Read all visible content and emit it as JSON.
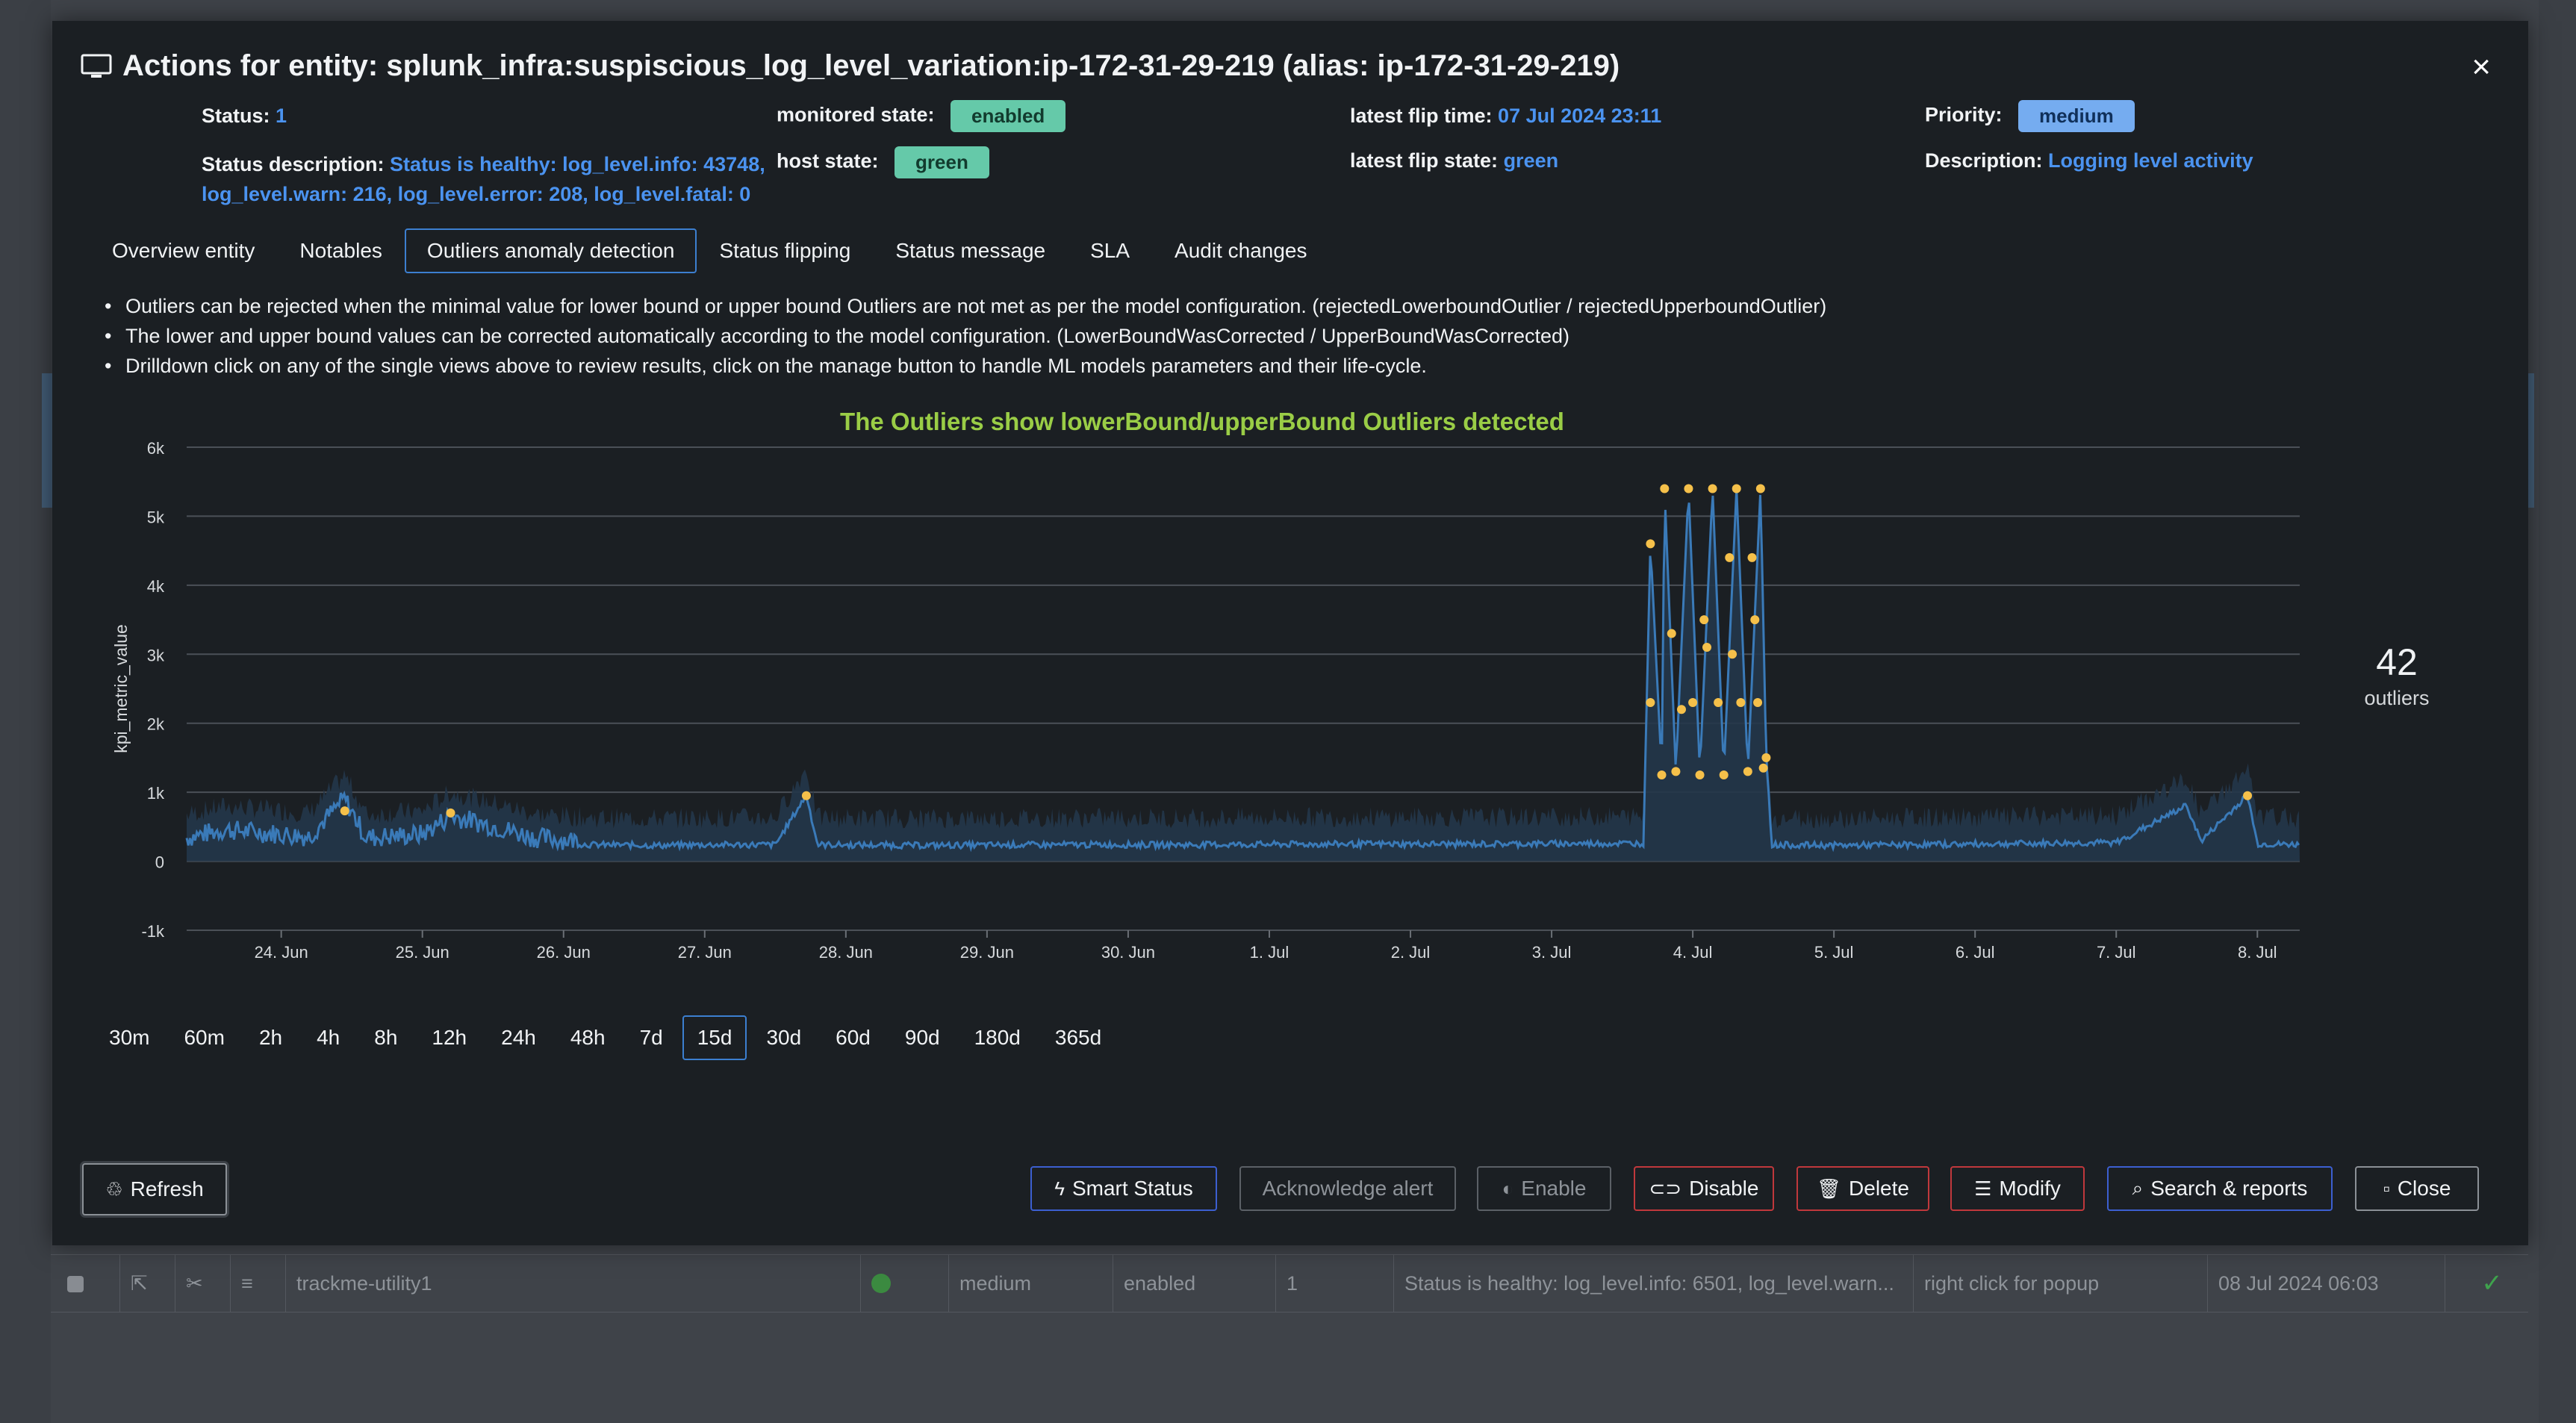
{
  "background": {
    "row": {
      "name": "trackme-utility1",
      "priority": "medium",
      "state": "enabled",
      "status": "1",
      "description": "Status is healthy: log_level.info: 6501, log_level.warn...",
      "popup": "right click for popup",
      "time": "08 Jul 2024 06:03"
    }
  },
  "modal": {
    "title": "Actions for entity: splunk_infra:suspiscious_log_level_variation:ip-172-31-29-219 (alias: ip-172-31-29-219)",
    "close_symbol": "×",
    "status_label": "Status:",
    "status_value": "1",
    "monitored_label": "monitored state:",
    "monitored_value": "enabled",
    "flip_time_label": "latest flip time:",
    "flip_time_value": "07 Jul 2024 23:11",
    "priority_label": "Priority:",
    "priority_value": "medium",
    "status_desc_label": "Status description:",
    "status_desc_line1": "Status is healthy: log_level.info: 43748,",
    "status_desc_line2": "log_level.warn: 216, log_level.error: 208, log_level.fatal: 0",
    "host_state_label": "host state:",
    "host_state_value": "green",
    "flip_state_label": "latest flip state:",
    "flip_state_value": "green",
    "description_label": "Description:",
    "description_value": "Logging level activity",
    "tabs": [
      "Overview entity",
      "Notables",
      "Outliers anomaly detection",
      "Status flipping",
      "Status message",
      "SLA",
      "Audit changes"
    ],
    "active_tab": 2,
    "bullets": [
      "Outliers can be rejected when the minimal value for lower bound or upper bound Outliers are not met as per the model configuration. (rejectedLowerboundOutlier / rejectedUpperboundOutlier)",
      "The lower and upper bound values can be corrected automatically according to the model configuration. (LowerBoundWasCorrected / UpperBoundWasCorrected)",
      "Drilldown click on any of the single views above to review results, click on the manage button to handle ML models parameters and their life-cycle."
    ],
    "outliers_count": "42",
    "outliers_label": "outliers",
    "time_ranges": [
      "30m",
      "60m",
      "2h",
      "4h",
      "8h",
      "12h",
      "24h",
      "48h",
      "7d",
      "15d",
      "30d",
      "60d",
      "90d",
      "180d",
      "365d"
    ],
    "active_range": 9,
    "buttons": {
      "refresh": "Refresh",
      "smart_status": "Smart Status",
      "acknowledge": "Acknowledge alert",
      "enable": "Enable",
      "disable": "Disable",
      "delete": "Delete",
      "modify": "Modify",
      "search": "Search & reports",
      "close": "Close"
    }
  },
  "colors": {
    "line": "#3a7ab8",
    "area": "#23364a",
    "outlier": "#f5c04a",
    "chart_title": "#9acd46"
  },
  "chart_data": {
    "type": "line",
    "title": "The Outliers show lowerBound/upperBound Outliers detected",
    "ylabel": "kpi_metric_value",
    "xlabel": "",
    "y_ticks": [
      "6k",
      "5k",
      "4k",
      "3k",
      "2k",
      "1k",
      "0",
      "-1k"
    ],
    "ylim": [
      -1000,
      6000
    ],
    "x_ticks": [
      "24. Jun",
      "25. Jun",
      "26. Jun",
      "27. Jun",
      "28. Jun",
      "29. Jun",
      "30. Jun",
      "1. Jul",
      "2. Jul",
      "3. Jul",
      "4. Jul",
      "5. Jul",
      "6. Jul",
      "7. Jul",
      "8. Jul"
    ],
    "x_range_days": [
      23.33,
      38.3
    ],
    "grid": true,
    "series": [
      {
        "values": [
          [
            23.33,
            280
          ],
          [
            23.6,
            400
          ],
          [
            23.9,
            350
          ],
          [
            24.2,
            300
          ],
          [
            24.45,
            850
          ],
          [
            24.6,
            280
          ],
          [
            25.0,
            330
          ],
          [
            25.2,
            600
          ],
          [
            25.5,
            450
          ],
          [
            25.8,
            280
          ],
          [
            26.2,
            230
          ],
          [
            26.7,
            220
          ],
          [
            27.0,
            230
          ],
          [
            27.5,
            230
          ],
          [
            27.72,
            950
          ],
          [
            27.8,
            230
          ],
          [
            28.5,
            220
          ],
          [
            29.5,
            230
          ],
          [
            30.5,
            230
          ],
          [
            31.5,
            240
          ],
          [
            32.5,
            240
          ],
          [
            33.5,
            250
          ],
          [
            33.65,
            250
          ],
          [
            33.7,
            4600
          ],
          [
            33.78,
            1300
          ],
          [
            33.8,
            5400
          ],
          [
            33.88,
            1300
          ],
          [
            33.97,
            5400
          ],
          [
            34.05,
            1300
          ],
          [
            34.14,
            5400
          ],
          [
            34.22,
            1300
          ],
          [
            34.31,
            5400
          ],
          [
            34.39,
            1300
          ],
          [
            34.48,
            5400
          ],
          [
            34.52,
            1500
          ],
          [
            34.56,
            230
          ],
          [
            35.0,
            220
          ],
          [
            36.0,
            240
          ],
          [
            37.0,
            260
          ],
          [
            37.5,
            800
          ],
          [
            37.6,
            280
          ],
          [
            37.93,
            950
          ],
          [
            38.0,
            240
          ],
          [
            38.3,
            230
          ]
        ]
      }
    ],
    "outliers": [
      [
        24.45,
        730
      ],
      [
        25.2,
        700
      ],
      [
        27.72,
        950
      ],
      [
        33.7,
        4600
      ],
      [
        33.7,
        2300
      ],
      [
        33.78,
        1250
      ],
      [
        33.8,
        5400
      ],
      [
        33.85,
        3300
      ],
      [
        33.88,
        1300
      ],
      [
        33.92,
        2200
      ],
      [
        33.97,
        5400
      ],
      [
        34.0,
        2300
      ],
      [
        34.05,
        1250
      ],
      [
        34.08,
        3500
      ],
      [
        34.1,
        3100
      ],
      [
        34.14,
        5400
      ],
      [
        34.18,
        2300
      ],
      [
        34.22,
        1250
      ],
      [
        34.26,
        4400
      ],
      [
        34.28,
        3000
      ],
      [
        34.31,
        5400
      ],
      [
        34.34,
        2300
      ],
      [
        34.39,
        1300
      ],
      [
        34.42,
        4400
      ],
      [
        34.44,
        3500
      ],
      [
        34.46,
        2300
      ],
      [
        34.48,
        5400
      ],
      [
        34.5,
        1350
      ],
      [
        34.52,
        1500
      ],
      [
        37.93,
        950
      ]
    ]
  }
}
